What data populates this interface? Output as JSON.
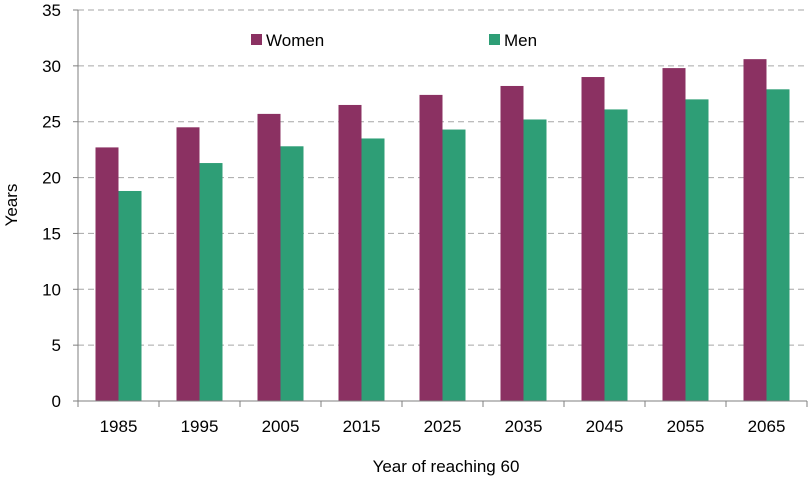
{
  "chart_data": {
    "type": "bar",
    "title": "",
    "xlabel": "Year of reaching 60",
    "ylabel": "Years",
    "ylim": [
      0,
      35
    ],
    "yticks": [
      0,
      5,
      10,
      15,
      20,
      25,
      30,
      35
    ],
    "grid": true,
    "legend_position": "top",
    "categories": [
      "1985",
      "1995",
      "2005",
      "2015",
      "2025",
      "2035",
      "2045",
      "2055",
      "2065"
    ],
    "series": [
      {
        "name": "Women",
        "color": "#8b3162",
        "values": [
          22.7,
          24.5,
          25.7,
          26.5,
          27.4,
          28.2,
          29.0,
          29.8,
          30.6
        ]
      },
      {
        "name": "Men",
        "color": "#2e9e76",
        "values": [
          18.8,
          21.3,
          22.8,
          23.5,
          24.3,
          25.2,
          26.1,
          27.0,
          27.9
        ]
      }
    ]
  }
}
